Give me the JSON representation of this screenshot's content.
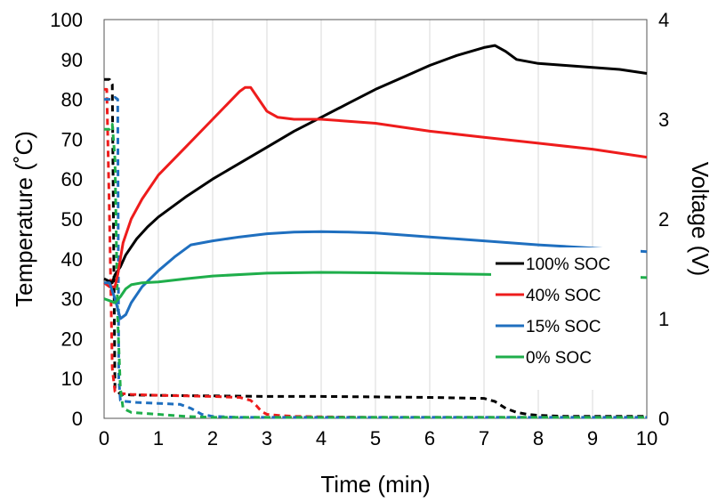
{
  "chart_data": {
    "type": "line",
    "xlabel": "Time (min)",
    "ylabel": "Temperature (˚C)",
    "y2label": "Voltage (V)",
    "xlim": [
      0,
      10
    ],
    "ylim": [
      0,
      100
    ],
    "y2lim": [
      0,
      4
    ],
    "xticks": [
      0,
      1,
      2,
      3,
      4,
      5,
      6,
      7,
      8,
      9,
      10
    ],
    "yticks": [
      0,
      10,
      20,
      30,
      40,
      50,
      60,
      70,
      80,
      90,
      100
    ],
    "y2ticks": [
      0,
      1,
      2,
      3,
      4
    ],
    "grid": "vertical",
    "legend_position": "right",
    "series": [
      {
        "name": "100% SOC",
        "color": "#000000",
        "axis": "temperature",
        "x": [
          0,
          0.15,
          0.2,
          0.3,
          0.4,
          0.6,
          0.8,
          1.0,
          1.5,
          2.0,
          2.5,
          3.0,
          3.5,
          4.0,
          4.5,
          5.0,
          5.5,
          6.0,
          6.5,
          7.0,
          7.2,
          7.4,
          7.6,
          8.0,
          8.5,
          9.0,
          9.5,
          10.0
        ],
        "y": [
          35,
          34,
          36,
          38,
          41,
          45,
          48,
          50.5,
          55.5,
          60,
          64,
          68,
          72,
          75.5,
          79,
          82.5,
          85.5,
          88.5,
          91,
          93,
          93.5,
          92,
          90,
          89,
          88.5,
          88,
          87.5,
          86.5
        ]
      },
      {
        "name": "40% SOC",
        "color": "#ee1c1c",
        "axis": "temperature",
        "x": [
          0,
          0.1,
          0.2,
          0.25,
          0.35,
          0.5,
          0.7,
          1.0,
          1.5,
          2.0,
          2.5,
          2.6,
          2.7,
          2.8,
          3.0,
          3.2,
          3.5,
          4.0,
          5.0,
          6.0,
          7.0,
          8.0,
          9.0,
          10.0
        ],
        "y": [
          34,
          33,
          33,
          36,
          44,
          50,
          55,
          61,
          68,
          75,
          82,
          83,
          83,
          81,
          77,
          75.5,
          75,
          75,
          74,
          72,
          70.5,
          69,
          67.5,
          65.5
        ]
      },
      {
        "name": "15% SOC",
        "color": "#1f6fbf",
        "axis": "temperature",
        "x": [
          0,
          0.1,
          0.2,
          0.3,
          0.4,
          0.5,
          0.7,
          1.0,
          1.3,
          1.6,
          1.8,
          2.0,
          2.5,
          3.0,
          3.5,
          4.0,
          4.5,
          5.0,
          6.0,
          7.0,
          8.0,
          9.0,
          10.0
        ],
        "y": [
          34,
          34,
          30,
          25,
          26,
          29,
          33,
          37,
          40.5,
          43.5,
          44,
          44.5,
          45.5,
          46.3,
          46.7,
          46.8,
          46.7,
          46.5,
          45.5,
          44.5,
          43.5,
          42.7,
          41.8
        ]
      },
      {
        "name": "0% SOC",
        "color": "#1fae4b",
        "axis": "temperature",
        "x": [
          0,
          0.1,
          0.2,
          0.3,
          0.4,
          0.5,
          0.7,
          1.0,
          1.5,
          2.0,
          3.0,
          4.0,
          5.0,
          6.0,
          7.0,
          8.0,
          9.0,
          10.0
        ],
        "y": [
          30,
          29.5,
          29,
          30.5,
          32.5,
          33.5,
          34,
          34.2,
          35,
          35.7,
          36.4,
          36.6,
          36.5,
          36.3,
          36.1,
          35.9,
          35.7,
          35.3
        ]
      },
      {
        "name": "100% SOC voltage",
        "color": "#000000",
        "axis": "voltage",
        "dashed": true,
        "x": [
          0,
          0.1,
          0.15,
          0.2,
          0.3,
          0.5,
          1.0,
          2.0,
          3.0,
          4.0,
          5.0,
          6.0,
          7.0,
          7.2,
          7.4,
          7.6,
          7.8,
          8.0,
          8.5,
          9.0,
          10.0
        ],
        "y": [
          3.4,
          3.4,
          3.35,
          0.3,
          0.24,
          0.235,
          0.23,
          0.225,
          0.22,
          0.22,
          0.215,
          0.21,
          0.2,
          0.17,
          0.1,
          0.06,
          0.04,
          0.03,
          0.02,
          0.02,
          0.02
        ]
      },
      {
        "name": "40% SOC voltage",
        "color": "#ee1c1c",
        "axis": "voltage",
        "dashed": true,
        "x": [
          0,
          0.05,
          0.1,
          0.15,
          0.2,
          0.3,
          0.5,
          1.0,
          1.5,
          2.0,
          2.5,
          2.7,
          2.8,
          2.9,
          3.0,
          3.2,
          3.5,
          4.0,
          5.0,
          7.0,
          10.0
        ],
        "y": [
          3.3,
          3.3,
          2.0,
          0.5,
          0.27,
          0.25,
          0.24,
          0.23,
          0.225,
          0.22,
          0.21,
          0.18,
          0.13,
          0.07,
          0.04,
          0.03,
          0.02,
          0.015,
          0.01,
          0.01,
          0.01
        ]
      },
      {
        "name": "15% SOC voltage",
        "color": "#1f6fbf",
        "axis": "voltage",
        "dashed": true,
        "x": [
          0,
          0.15,
          0.2,
          0.25,
          0.27,
          0.3,
          0.4,
          0.6,
          1.0,
          1.4,
          1.6,
          1.8,
          2.0,
          2.5,
          3.0,
          10.0
        ],
        "y": [
          3.2,
          3.2,
          3.22,
          3.2,
          0.4,
          0.18,
          0.17,
          0.16,
          0.15,
          0.14,
          0.1,
          0.04,
          0.02,
          0.01,
          0.01,
          0.01
        ]
      },
      {
        "name": "0% SOC voltage",
        "color": "#1fae4b",
        "axis": "voltage",
        "dashed": true,
        "x": [
          0,
          0.1,
          0.15,
          0.2,
          0.25,
          0.3,
          0.35,
          0.5,
          1.0,
          1.5,
          2.0,
          3.0,
          10.0
        ],
        "y": [
          2.9,
          2.9,
          2.95,
          2.6,
          1.0,
          0.3,
          0.1,
          0.06,
          0.04,
          0.02,
          0.01,
          0.01,
          0.01
        ]
      }
    ],
    "legend": [
      "100% SOC",
      "40% SOC",
      "15% SOC",
      "0% SOC"
    ]
  }
}
